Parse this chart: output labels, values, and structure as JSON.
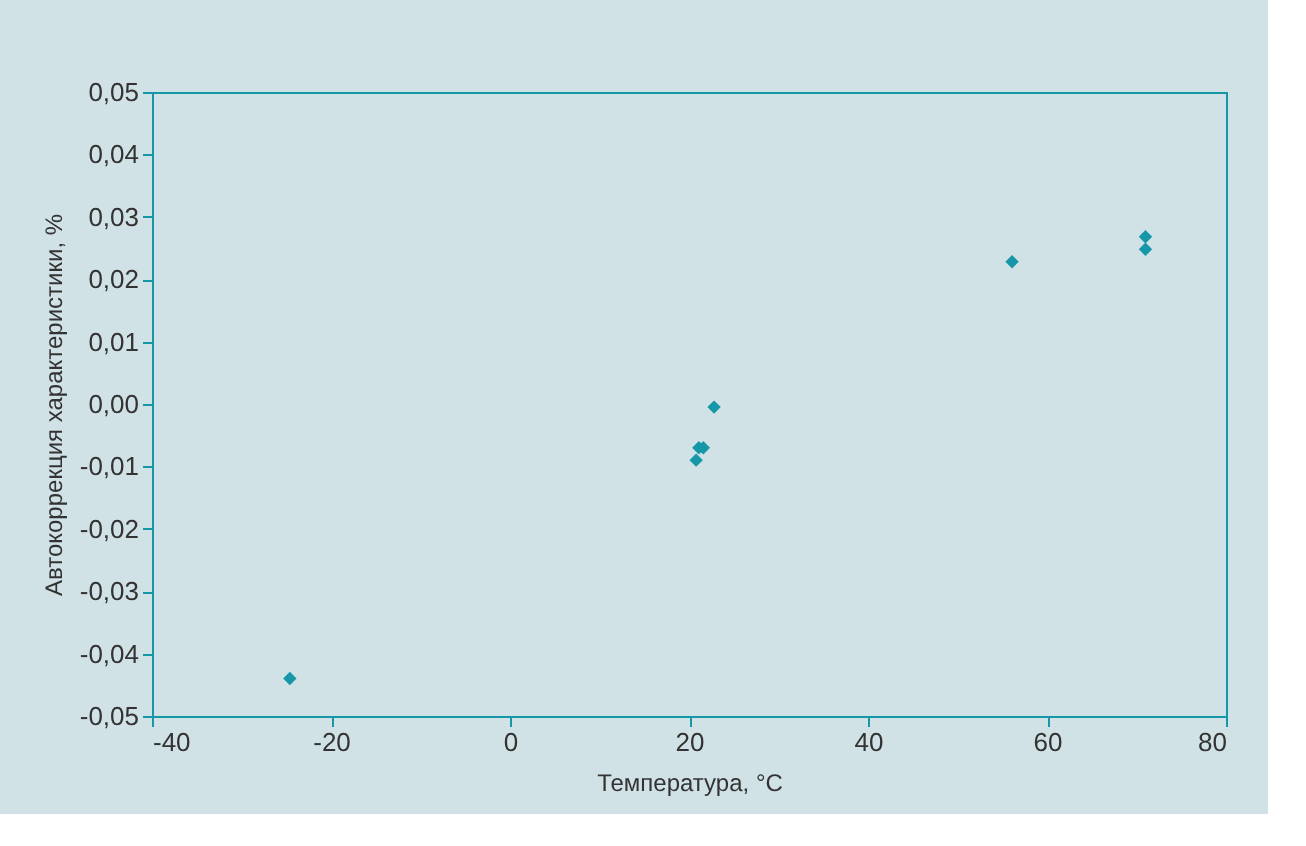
{
  "chart_data": {
    "type": "scatter",
    "xlabel": "Температура, °C",
    "ylabel": "Автокоррекция характеристики, %",
    "x": [
      -24.6,
      20.8,
      21.1,
      21.6,
      22.8,
      56.1,
      71,
      71
    ],
    "series": [
      {
        "color": "#1597a8",
        "values": [
          -0.044,
          -0.009,
          -0.007,
          -0.007,
          -0.0005,
          0.0228,
          0.0268,
          0.0248
        ]
      }
    ],
    "marker": "diamond",
    "grid": false,
    "legend": false,
    "xlim": [
      -40,
      80
    ],
    "xticks": [
      {
        "value": -40,
        "label": "-40"
      },
      {
        "value": -20,
        "label": "-20"
      },
      0,
      20,
      40,
      60,
      80
    ],
    "ylim": [
      -0.05,
      0.05
    ],
    "yticks": [
      {
        "value": -0.05,
        "label": "-0,05"
      },
      {
        "value": -0.04,
        "label": "-0,04"
      },
      {
        "value": -0.03,
        "label": "-0,03"
      },
      {
        "value": -0.02,
        "label": "-0,02"
      },
      {
        "value": -0.01,
        "label": "-0,01"
      },
      {
        "value": 0,
        "label": "0,00"
      },
      {
        "value": 0.01,
        "label": "0,01"
      },
      {
        "value": 0.02,
        "label": "0,02"
      },
      {
        "value": 0.03,
        "label": "0,03"
      },
      {
        "value": 0.04,
        "label": "0,04"
      },
      {
        "value": 0.05,
        "label": "0,05"
      }
    ]
  }
}
